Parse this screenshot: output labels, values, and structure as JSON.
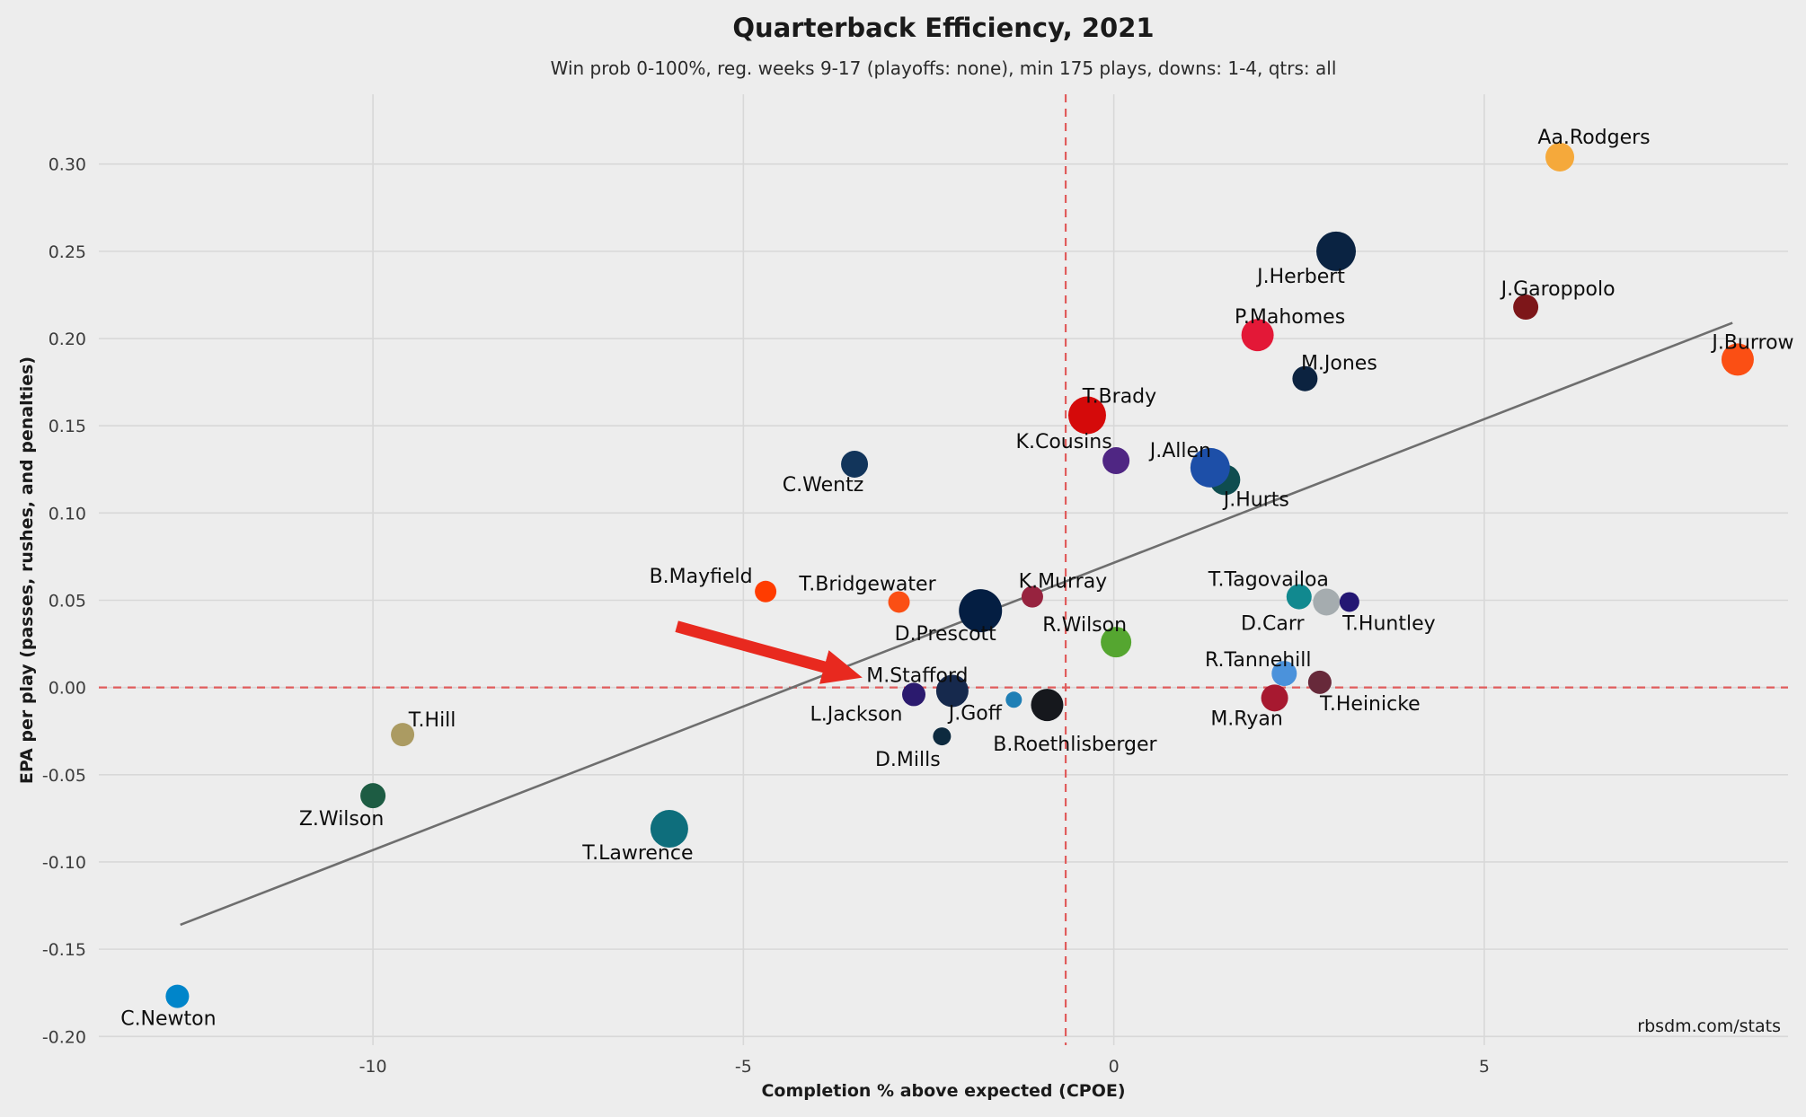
{
  "page": {
    "title": "Quarterback Efficiency, 2021",
    "subtitle": "Win prob 0-100%, reg. weeks 9-17 (playoffs: none), min 175 plays, downs: 1-4, qtrs: all",
    "watermark": "rbsdm.com/stats"
  },
  "chart_data": {
    "type": "scatter",
    "title": "Quarterback Efficiency, 2021",
    "subtitle": "Win prob 0-100%, reg. weeks 9-17 (playoffs: none), min 175 plays, downs: 1-4, qtrs: all",
    "xlabel": "Completion % above expected (CPOE)",
    "ylabel": "EPA per play (passes, rushes, and penalties)",
    "watermark": "rbsdm.com/stats",
    "xlim": [
      -13.7,
      9.1
    ],
    "ylim": [
      -0.205,
      0.34
    ],
    "grid": true,
    "legend": "none",
    "xticks": {
      "values": [
        -10,
        -5,
        0,
        5
      ],
      "labels": [
        "-10",
        "-5",
        "0",
        "5"
      ]
    },
    "yticks": {
      "values": [
        -0.2,
        -0.15,
        -0.1,
        -0.05,
        0,
        0.05,
        0.1,
        0.15,
        0.2,
        0.25,
        0.3
      ],
      "labels": [
        "-0.20",
        "-0.15",
        "-0.10",
        "-0.05",
        "0.00",
        "0.05",
        "0.10",
        "0.15",
        "0.20",
        "0.25",
        "0.30"
      ]
    },
    "colors": {
      "background": "#ededed",
      "grid": "#d8d8d8",
      "tick_text": "#3d3d3d",
      "label_text": "#0d0d0d",
      "trend": "#6e6e6e",
      "reference": "#e05c5c",
      "arrow": "#e8291f"
    },
    "reference_lines": {
      "hline_y": 0,
      "vline_x": -0.65,
      "style": "dashed"
    },
    "trend_line": {
      "x1": -12.6,
      "y1": -0.136,
      "x2": 8.35,
      "y2": 0.209
    },
    "arrow": {
      "x1": -5.9,
      "y1": 0.035,
      "x2": -3.85,
      "y2": 0.011
    },
    "points": [
      {
        "name": "C.Newton",
        "x": -12.64,
        "y": -0.177,
        "r": 13,
        "color": "#0085CA",
        "label_offset": [
          -10,
          24
        ]
      },
      {
        "name": "Z.Wilson",
        "x": -10.0,
        "y": -0.062,
        "r": 14,
        "color": "#1d5c43",
        "label_offset": [
          -35,
          25
        ]
      },
      {
        "name": "T.Lawrence",
        "x": -6.0,
        "y": -0.081,
        "r": 21,
        "color": "#0e6e7c",
        "label_offset": [
          -35,
          26
        ]
      },
      {
        "name": "T.Hill",
        "x": -9.6,
        "y": -0.027,
        "r": 13,
        "color": "#ab9b62",
        "label_offset": [
          33,
          -17
        ]
      },
      {
        "name": "D.Mills",
        "x": -2.32,
        "y": -0.028,
        "r": 10,
        "color": "#0d2a3f",
        "label_offset": [
          -38,
          25
        ]
      },
      {
        "name": "L.Jackson",
        "x": -2.7,
        "y": -0.004,
        "r": 13,
        "color": "#2b1a6e",
        "label_offset": [
          -64,
          21
        ]
      },
      {
        "name": "M.Stafford",
        "x": -2.18,
        "y": -0.002,
        "r": 18,
        "color": "#16294d",
        "label_offset": [
          -39,
          -18
        ]
      },
      {
        "name": "J.Goff",
        "x": -1.35,
        "y": -0.007,
        "r": 9,
        "color": "#1f7fb5",
        "label_offset": [
          -43,
          14
        ]
      },
      {
        "name": "B.Roethlisberger",
        "x": -0.9,
        "y": -0.01,
        "r": 18,
        "color": "#16181d",
        "label_offset": [
          31,
          43
        ]
      },
      {
        "name": "K.Murray",
        "x": -1.1,
        "y": 0.052,
        "r": 12,
        "color": "#97233F",
        "label_offset": [
          34,
          -18
        ]
      },
      {
        "name": "D.Prescott",
        "x": -1.8,
        "y": 0.044,
        "r": 24,
        "color": "#041E42",
        "label_offset": [
          -39,
          25
        ]
      },
      {
        "name": "T.Bridgewater",
        "x": -2.9,
        "y": 0.049,
        "r": 12,
        "color": "#FB4F14",
        "label_offset": [
          -35,
          -21
        ]
      },
      {
        "name": "B.Mayfield",
        "x": -4.7,
        "y": 0.055,
        "r": 12,
        "color": "#FF3C00",
        "label_offset": [
          -72,
          -18
        ]
      },
      {
        "name": "R.Wilson",
        "x": 0.03,
        "y": 0.026,
        "r": 17,
        "color": "#55a630",
        "label_offset": [
          -35,
          -20
        ]
      },
      {
        "name": "K.Cousins",
        "x": 0.03,
        "y": 0.13,
        "r": 15,
        "color": "#4F2683",
        "label_offset": [
          -58,
          -22
        ]
      },
      {
        "name": "C.Wentz",
        "x": -3.5,
        "y": 0.128,
        "r": 15,
        "color": "#12355b",
        "label_offset": [
          -35,
          22
        ]
      },
      {
        "name": "J.Hurts",
        "x": 1.5,
        "y": 0.119,
        "r": 17,
        "color": "#0f4d50",
        "label_offset": [
          35,
          21
        ]
      },
      {
        "name": "J.Allen",
        "x": 1.3,
        "y": 0.126,
        "r": 22,
        "color": "#1d4fa8",
        "label_offset": [
          -33,
          -20
        ]
      },
      {
        "name": "T.Brady",
        "x": -0.36,
        "y": 0.156,
        "r": 21,
        "color": "#D50A0A",
        "label_offset": [
          36,
          -22
        ]
      },
      {
        "name": "T.Tagovailoa",
        "x": 2.5,
        "y": 0.052,
        "r": 14,
        "color": "#11898f",
        "label_offset": [
          -34,
          -20
        ]
      },
      {
        "name": "D.Carr",
        "x": 2.87,
        "y": 0.049,
        "r": 15,
        "color": "#A5ACAF",
        "label_offset": [
          -60,
          23
        ]
      },
      {
        "name": "T.Huntley",
        "x": 3.18,
        "y": 0.049,
        "r": 11,
        "color": "#241773",
        "label_offset": [
          44,
          23
        ]
      },
      {
        "name": "R.Tannehill",
        "x": 2.3,
        "y": 0.008,
        "r": 14,
        "color": "#4B92DB",
        "label_offset": [
          -29,
          -16
        ]
      },
      {
        "name": "T.Heinicke",
        "x": 2.78,
        "y": 0.003,
        "r": 13,
        "color": "#67293a",
        "label_offset": [
          56,
          23
        ]
      },
      {
        "name": "M.Ryan",
        "x": 2.17,
        "y": -0.006,
        "r": 15,
        "color": "#A71930",
        "label_offset": [
          -31,
          22
        ]
      },
      {
        "name": "M.Jones",
        "x": 2.58,
        "y": 0.177,
        "r": 14,
        "color": "#0C2340",
        "label_offset": [
          38,
          -18
        ]
      },
      {
        "name": "P.Mahomes",
        "x": 1.94,
        "y": 0.202,
        "r": 18,
        "color": "#E31837",
        "label_offset": [
          36,
          -21
        ]
      },
      {
        "name": "J.Herbert",
        "x": 3.0,
        "y": 0.25,
        "r": 22,
        "color": "#0A2342",
        "label_offset": [
          -39,
          27
        ]
      },
      {
        "name": "J.Garoppolo",
        "x": 5.56,
        "y": 0.218,
        "r": 14,
        "color": "#7d1619",
        "label_offset": [
          36,
          -21
        ]
      },
      {
        "name": "Aa.Rodgers",
        "x": 6.02,
        "y": 0.304,
        "r": 16,
        "color": "#F5A93B",
        "label_offset": [
          38,
          -23
        ]
      },
      {
        "name": "J.Burrow",
        "x": 8.42,
        "y": 0.188,
        "r": 18,
        "color": "#FB4F14",
        "label_offset": [
          17,
          -20
        ]
      }
    ]
  }
}
